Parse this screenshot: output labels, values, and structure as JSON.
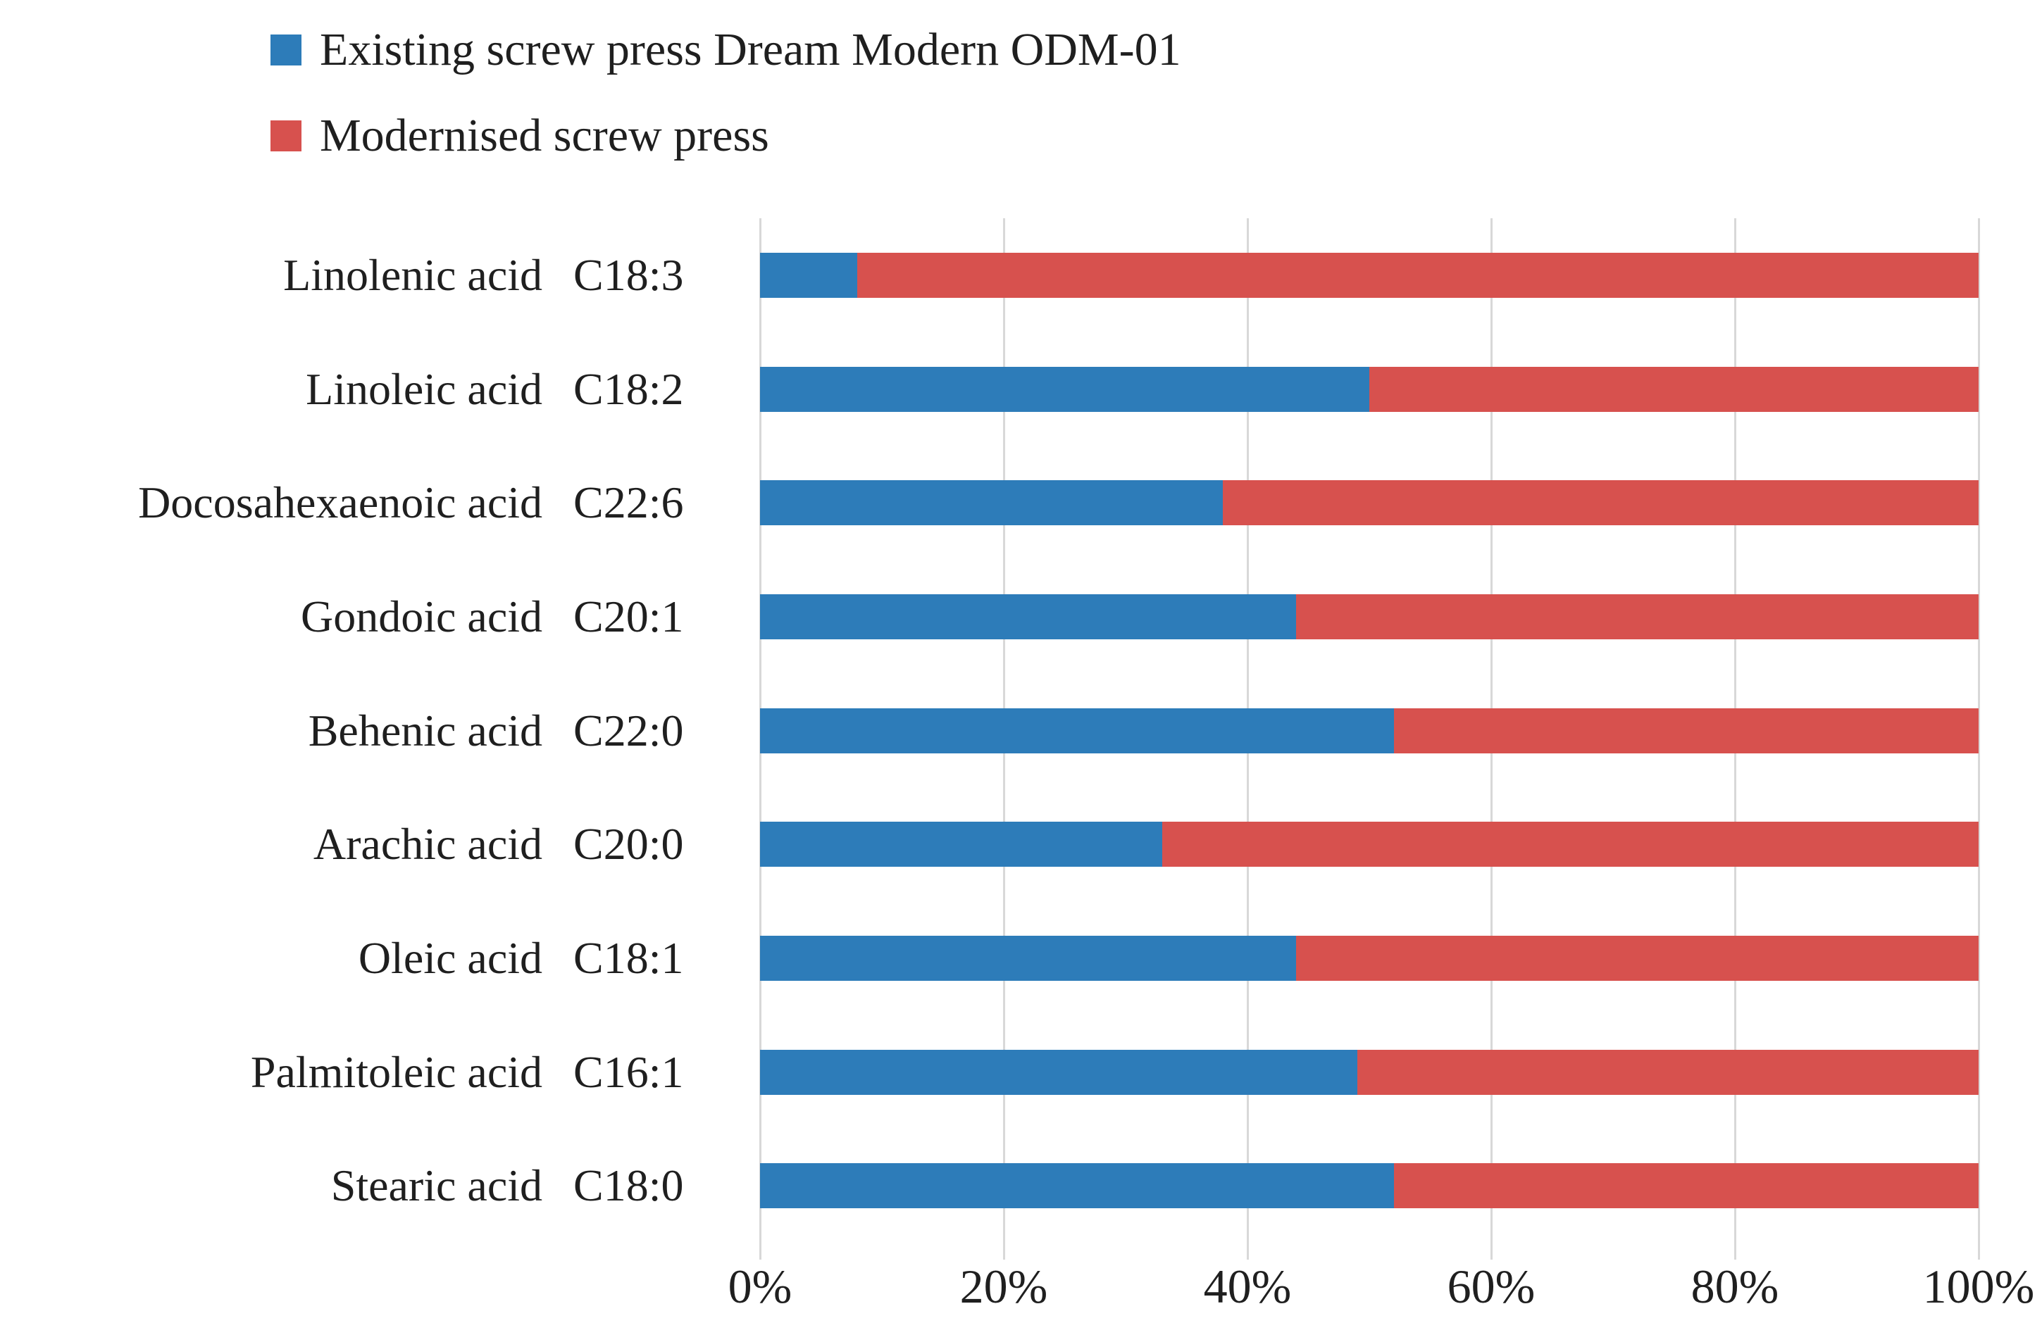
{
  "chart_data": {
    "type": "bar",
    "variant": "100%-stacked-horizontal",
    "title": "",
    "xlabel": "",
    "ylabel": "",
    "xlim": [
      0,
      100
    ],
    "x_ticks": [
      "0%",
      "20%",
      "40%",
      "60%",
      "80%",
      "100%"
    ],
    "x_tick_values": [
      0,
      20,
      40,
      60,
      80,
      100
    ],
    "grid": "vertical-gridlines-on",
    "legend_position": "top-left",
    "categories": [
      "Linolenic acid",
      "Linoleic acid",
      "Docosahexaenoic acid",
      "Gondoic acid",
      "Behenic acid",
      "Arachic acid",
      "Oleic acid",
      "Palmitoleic acid",
      "Stearic acid"
    ],
    "category_codes": [
      "C18:3",
      "C18:2",
      "C22:6",
      "C20:1",
      "C22:0",
      "C20:0",
      "C18:1",
      "C16:1",
      "C18:0"
    ],
    "series": [
      {
        "name": "Existing screw press Dream Modern ODM-01",
        "color": "#2d7cb9",
        "values": [
          8,
          50,
          38,
          44,
          52,
          33,
          44,
          49,
          52
        ]
      },
      {
        "name": "Modernised screw press",
        "color": "#d7514e",
        "values": [
          92,
          50,
          62,
          56,
          48,
          67,
          56,
          51,
          48
        ]
      }
    ]
  },
  "colors": {
    "background": "#ffffff",
    "gridline": "#d8d8d8",
    "text": "#1f1f1f"
  }
}
